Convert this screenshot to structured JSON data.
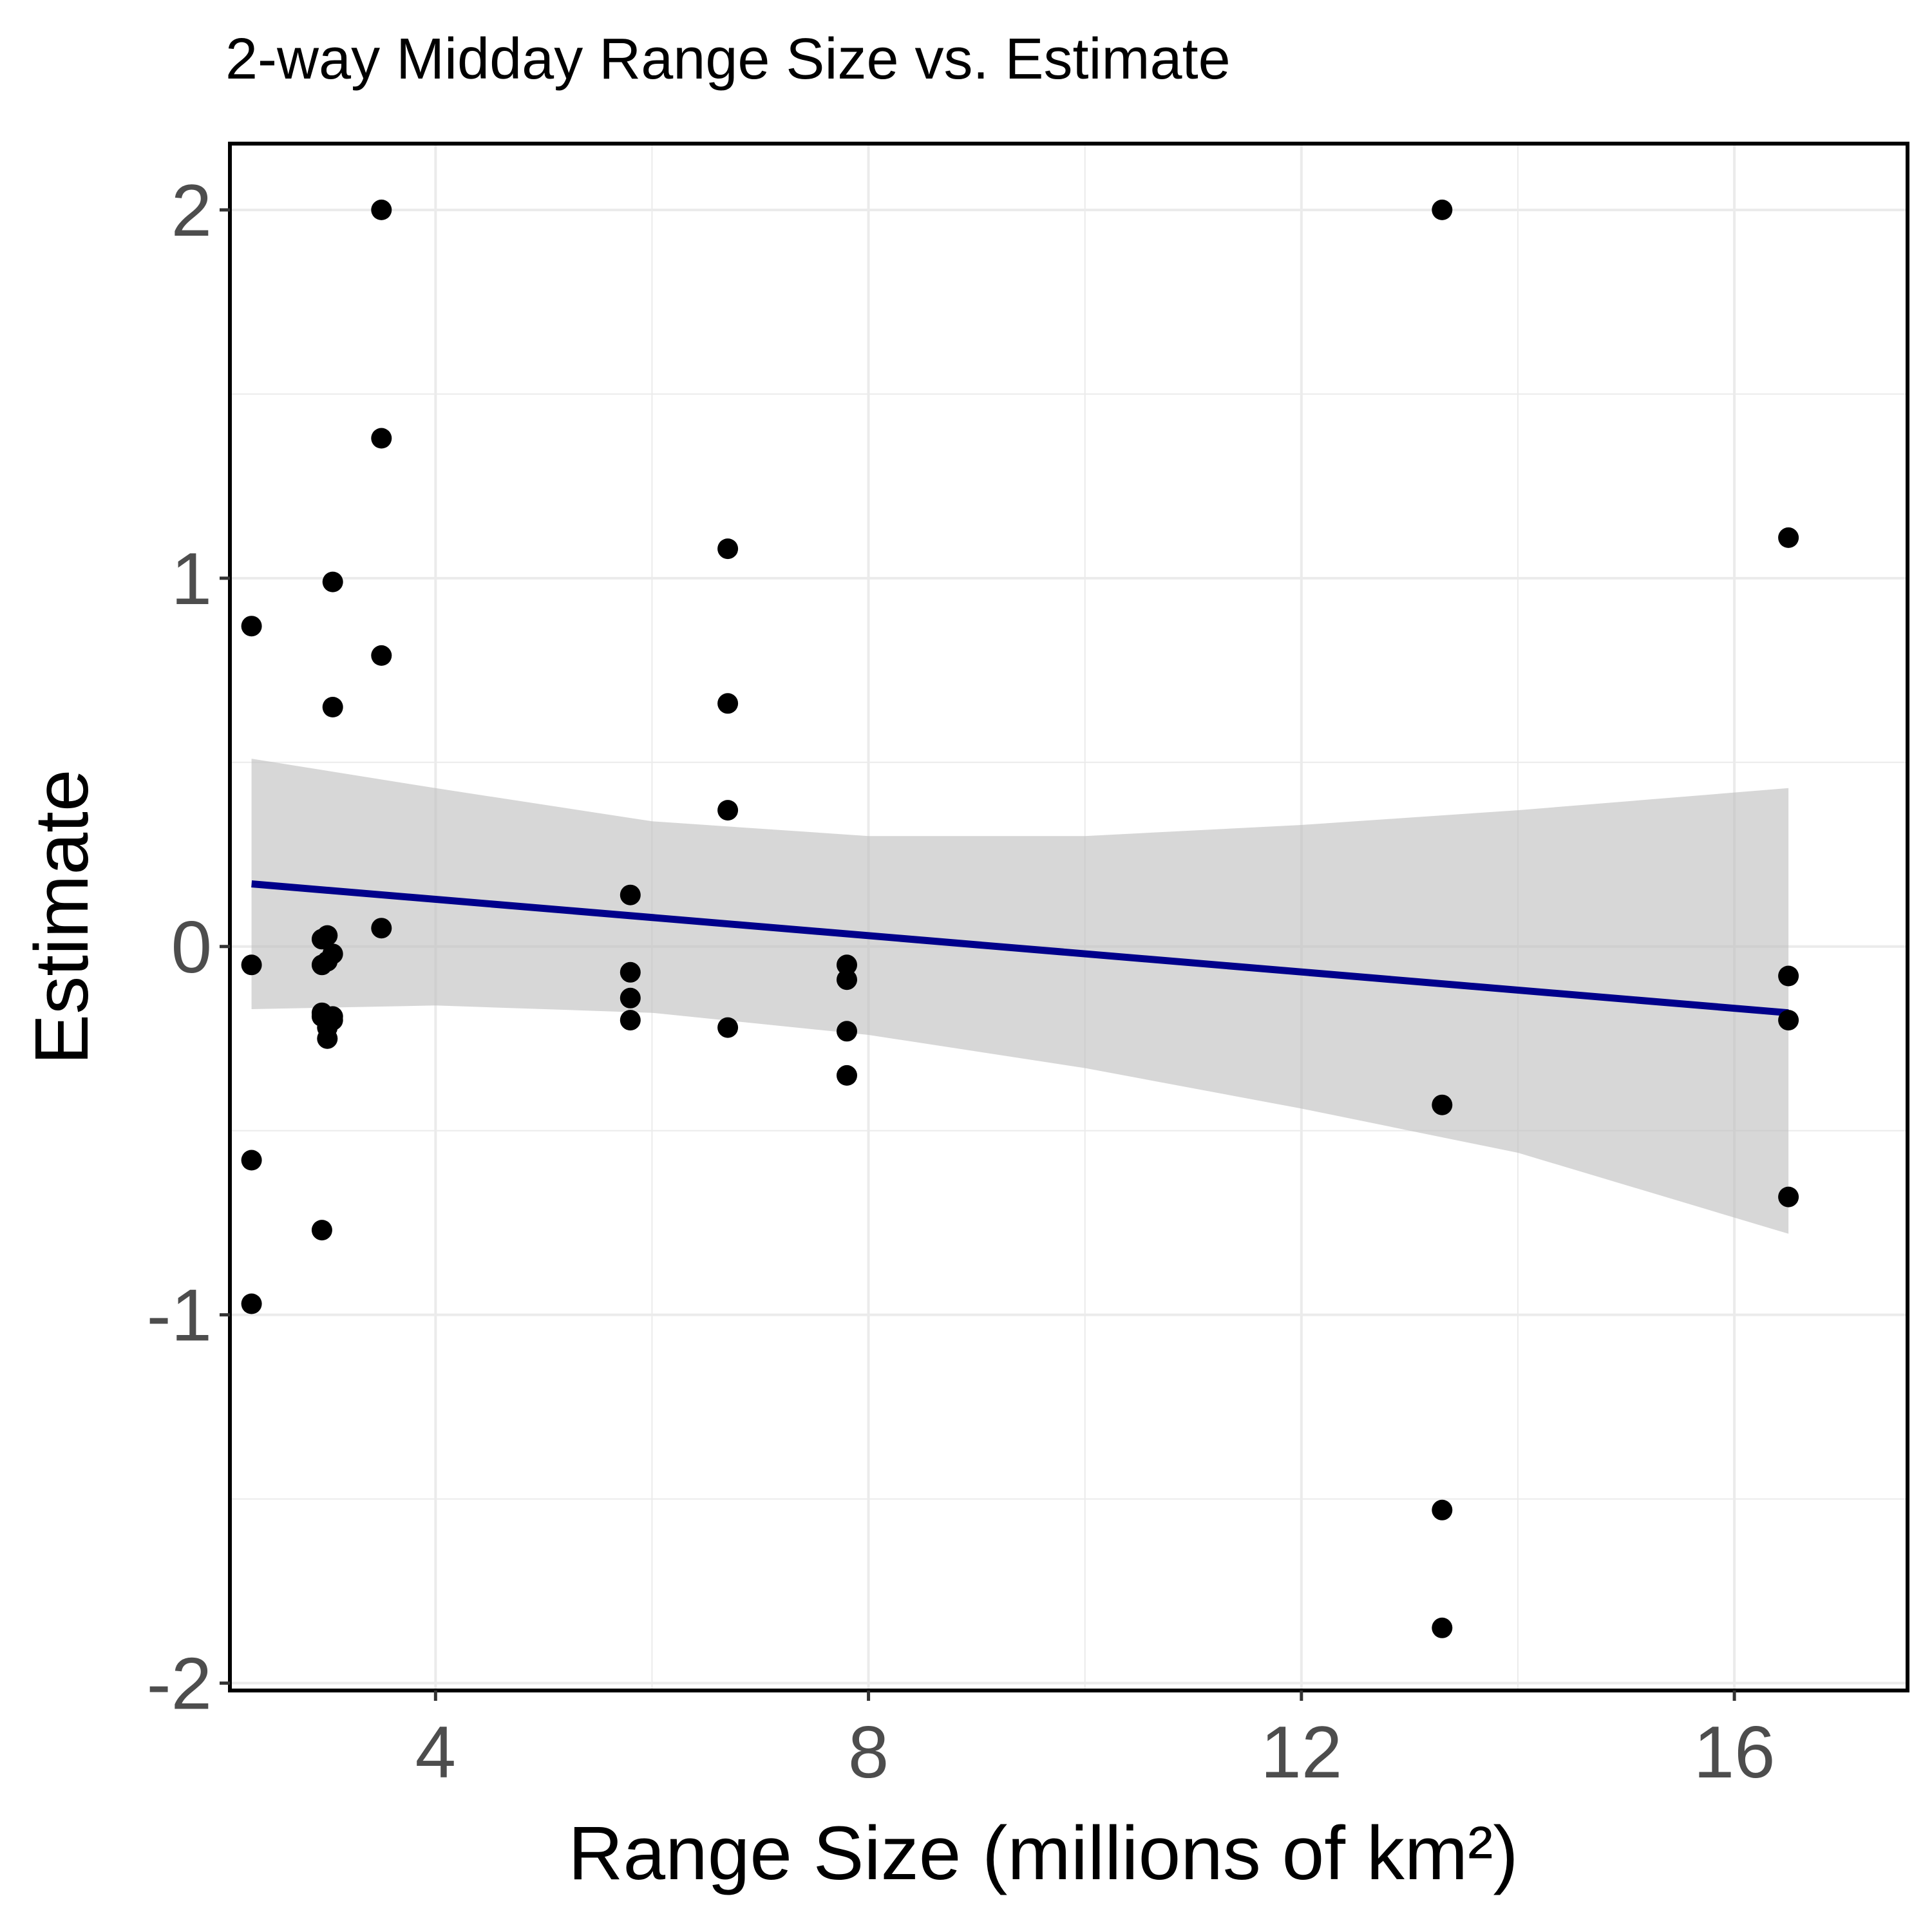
{
  "chart_data": {
    "type": "scatter",
    "title": "2-way Midday Range Size vs. Estimate",
    "xlabel": "Range Size (millions of km²)",
    "ylabel": "Estimate",
    "xlim": [
      2.1,
      17.6
    ],
    "ylim": [
      -2.02,
      2.18
    ],
    "x_ticks": [
      4,
      8,
      12,
      16
    ],
    "y_ticks": [
      -2,
      -1,
      0,
      1,
      2
    ],
    "x_tick_labels": [
      "4",
      "8",
      "12",
      "16"
    ],
    "y_tick_labels": [
      "-2",
      "-1",
      "0",
      "1",
      "2"
    ],
    "grid": true,
    "legend": "none",
    "colors": {
      "points": "#000000",
      "fit_line": "#00008b",
      "confidence_band": "#bdbdbd",
      "grid": "#ebebeb",
      "panel_border": "#000000"
    },
    "series": [
      {
        "kind": "points",
        "x": [
          2.3,
          2.3,
          2.3,
          2.3,
          2.95,
          2.95,
          2.95,
          2.95,
          2.95,
          3.0,
          3.0,
          3.0,
          3.0,
          3.05,
          3.05,
          3.05,
          3.05,
          3.05,
          3.5,
          3.5,
          3.5,
          3.5,
          5.8,
          5.8,
          5.8,
          5.8,
          6.7,
          6.7,
          6.7,
          6.7,
          7.8,
          7.8,
          7.8,
          7.8,
          13.3,
          13.3,
          13.3,
          13.3,
          16.5,
          16.5,
          16.5,
          16.5
        ],
        "y": [
          0.87,
          -0.05,
          -0.58,
          -0.97,
          0.02,
          -0.05,
          -0.18,
          -0.19,
          -0.77,
          0.03,
          -0.04,
          -0.22,
          -0.25,
          0.99,
          0.65,
          -0.02,
          -0.19,
          -0.2,
          2.0,
          1.38,
          0.79,
          0.05,
          0.14,
          -0.07,
          -0.14,
          -0.2,
          1.08,
          0.66,
          0.37,
          -0.22,
          -0.05,
          -0.09,
          -0.23,
          -0.35,
          2.0,
          -0.43,
          -1.53,
          -1.85,
          1.11,
          -0.08,
          -0.2,
          -0.68
        ]
      },
      {
        "kind": "fit",
        "x": [
          2.3,
          16.5
        ],
        "y": [
          0.17,
          -0.18
        ]
      },
      {
        "kind": "band",
        "x": [
          2.3,
          4.0,
          6.0,
          8.0,
          10.0,
          12.0,
          14.0,
          16.5
        ],
        "upper": [
          0.51,
          0.43,
          0.34,
          0.3,
          0.3,
          0.33,
          0.37,
          0.43
        ],
        "lower": [
          -0.17,
          -0.16,
          -0.18,
          -0.24,
          -0.33,
          -0.44,
          -0.56,
          -0.78
        ]
      }
    ]
  }
}
